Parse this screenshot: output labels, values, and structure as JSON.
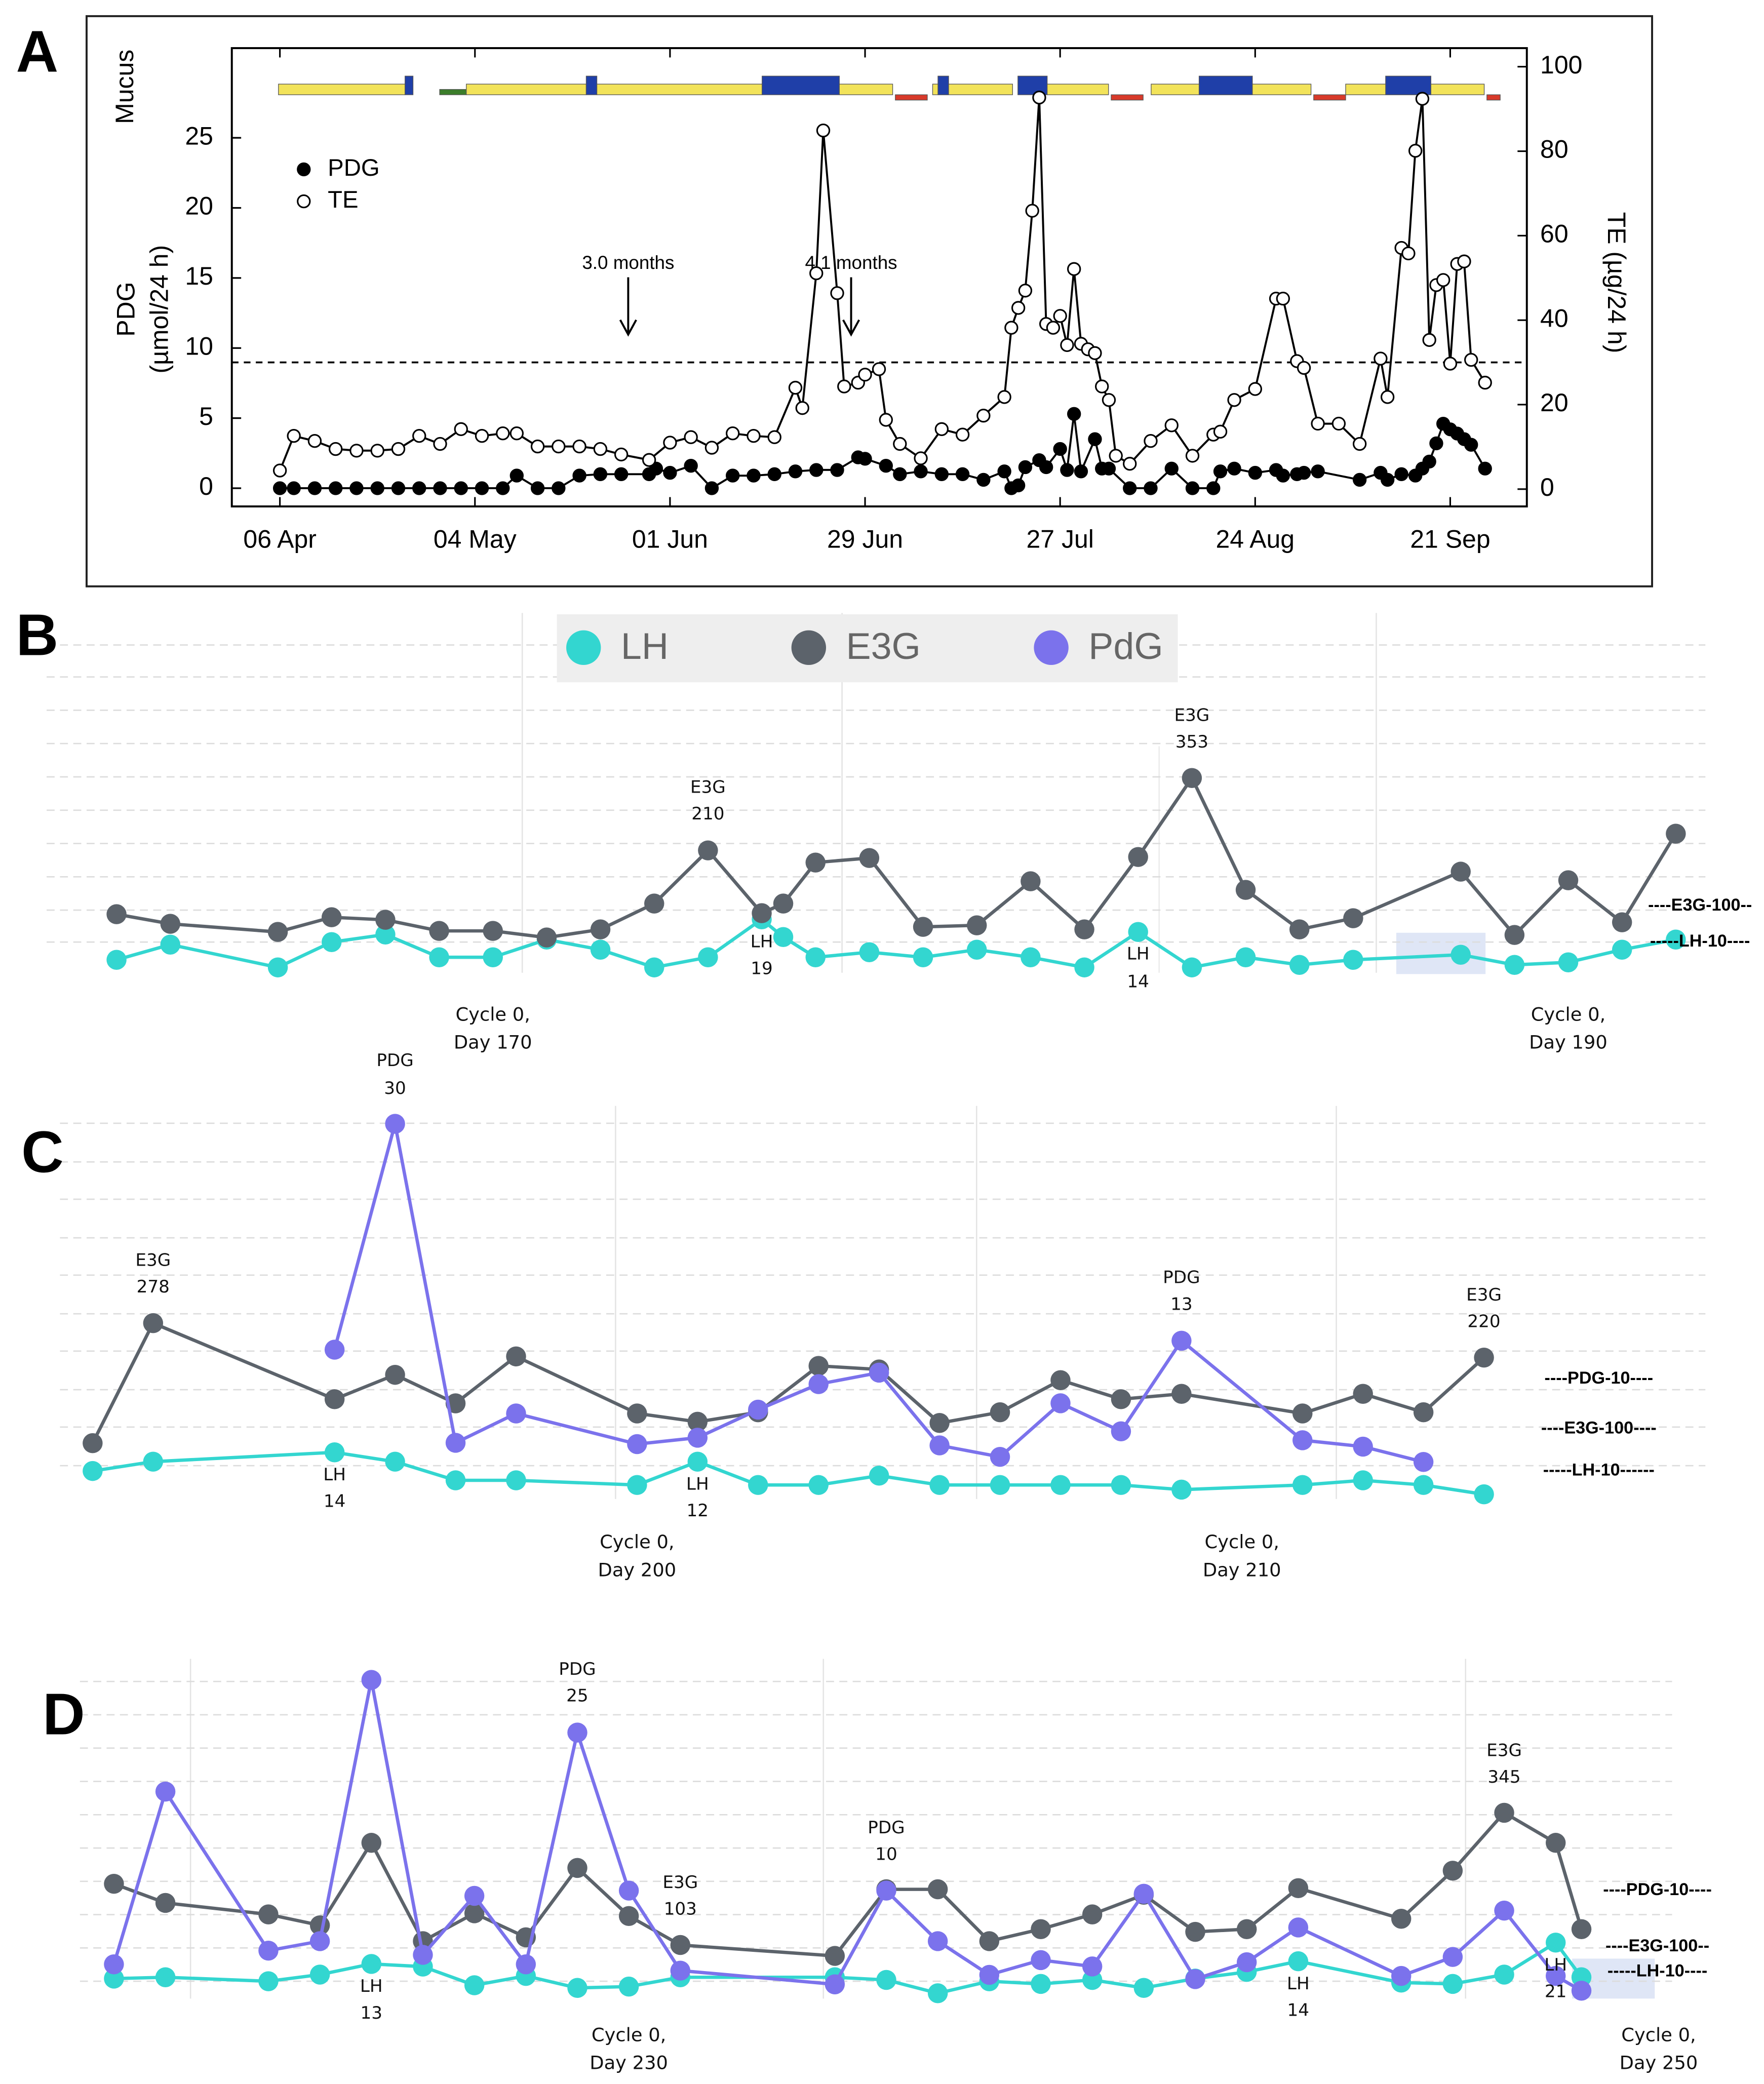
{
  "chart_data": [
    {
      "type": "line",
      "label": "A",
      "ylabel": [
        "PDG",
        "(µmol/24 h)"
      ],
      "y2label": "TE (µg/24 h)",
      "mucus_label": "Mucus",
      "xlim": [
        89.1,
        275
      ],
      "xticks": [
        {
          "value": 96,
          "label": "06 Apr"
        },
        {
          "value": 124,
          "label": "04 May"
        },
        {
          "value": 152,
          "label": "01 Jun"
        },
        {
          "value": 180,
          "label": "29 Jun"
        },
        {
          "value": 208,
          "label": "27 Jul"
        },
        {
          "value": 236,
          "label": "24 Aug"
        },
        {
          "value": 264,
          "label": "21 Sep"
        }
      ],
      "ylim": [
        -1.3,
        31.4
      ],
      "yticks": [
        0,
        5,
        10,
        15,
        20,
        25
      ],
      "y2lim": [
        -4.1,
        104.4
      ],
      "y2ticks": [
        0,
        20,
        40,
        60,
        80,
        100
      ],
      "legend": "upper left",
      "hlines": [
        {
          "value": 30,
          "axis": "y2"
        }
      ],
      "annotations": [
        {
          "text": "3.0 months",
          "x": 146
        },
        {
          "text": "4.1 months",
          "x": 178
        }
      ],
      "series": [
        {
          "name": "PDG",
          "color": "#000000",
          "marker": "filled",
          "x": [
            96,
            98,
            101,
            104,
            107,
            110,
            113,
            116,
            119,
            122,
            125,
            128,
            130,
            133,
            136,
            139,
            142,
            145,
            149,
            150,
            152,
            155,
            158,
            161,
            164,
            167,
            170,
            173,
            176,
            179,
            180,
            183,
            185,
            188,
            191,
            194,
            197,
            200,
            201,
            202,
            203,
            205,
            206,
            208,
            209,
            210,
            211,
            213,
            214,
            215,
            218,
            221,
            224,
            227,
            230,
            231,
            233,
            236,
            239,
            240,
            242,
            243,
            245,
            251,
            254,
            255,
            257,
            259,
            260,
            261,
            262,
            263,
            264,
            265,
            266,
            267,
            269
          ],
          "values": [
            0,
            0,
            0,
            0,
            0,
            0,
            0,
            0,
            0,
            0,
            0,
            0,
            0.9,
            0,
            0,
            0.9,
            1.0,
            1.0,
            1.0,
            1.4,
            1.1,
            1.6,
            0,
            0.9,
            0.9,
            1.0,
            1.2,
            1.3,
            1.3,
            2.2,
            2.1,
            1.6,
            1.0,
            1.2,
            1.0,
            1.0,
            0.6,
            1.2,
            0,
            0.2,
            1.5,
            2.0,
            1.5,
            2.8,
            1.3,
            5.3,
            1.2,
            3.5,
            1.4,
            1.4,
            0,
            0,
            1.4,
            0,
            0,
            1.2,
            1.4,
            1.1,
            1.3,
            0.9,
            1.0,
            1.1,
            1.2,
            0.6,
            1.1,
            0.6,
            1.0,
            0.9,
            1.4,
            1.9,
            3.2,
            4.6,
            4.2,
            3.9,
            3.5,
            3.1,
            1.4
          ]
        },
        {
          "name": "TE",
          "color": "#000000",
          "marker": "open",
          "axis": "y2",
          "x": [
            96,
            98,
            101,
            104,
            107,
            110,
            113,
            116,
            119,
            122,
            125,
            128,
            130,
            133,
            136,
            139,
            142,
            145,
            149,
            152,
            155,
            158,
            161,
            164,
            167,
            170,
            171,
            173,
            174,
            176,
            177,
            179,
            180,
            182,
            183,
            185,
            188,
            191,
            194,
            197,
            200,
            201,
            202,
            203,
            204,
            205,
            206,
            207,
            208,
            209,
            210,
            211,
            212,
            213,
            214,
            215,
            216,
            218,
            221,
            224,
            227,
            230,
            231,
            233,
            236,
            239,
            240,
            242,
            243,
            245,
            248,
            251,
            254,
            255,
            257,
            258,
            259,
            260,
            261,
            262,
            263,
            264,
            265,
            266,
            267,
            269
          ],
          "values": [
            4.4,
            12.6,
            11.4,
            9.5,
            9.1,
            9.1,
            9.5,
            12.6,
            10.7,
            14.2,
            12.6,
            13.2,
            13.2,
            10.1,
            10.1,
            10.1,
            9.5,
            8.2,
            6.9,
            11.0,
            12.3,
            9.8,
            13.2,
            12.6,
            12.3,
            24,
            19.2,
            51.1,
            84.9,
            46.4,
            24.3,
            25.2,
            27.1,
            28.4,
            16.4,
            10.7,
            7.3,
            14.2,
            12.9,
            17.4,
            21.8,
            38.2,
            42.9,
            47.0,
            65.9,
            92.7,
            39.1,
            38.2,
            41.0,
            34.1,
            52.1,
            34.4,
            33.1,
            32.2,
            24.3,
            21.1,
            7.9,
            6.0,
            11.4,
            15.1,
            7.9,
            12.9,
            13.6,
            21.1,
            23.7,
            45.1,
            45.1,
            30.3,
            28.7,
            15.5,
            15.5,
            10.7,
            30.9,
            21.8,
            57.1,
            55.8,
            80.1,
            92.4,
            35.3,
            48.3,
            49.5,
            29.7,
            53.3,
            53.9,
            30.6,
            25.2
          ]
        }
      ]
    },
    {
      "type": "line",
      "label": "B",
      "legend": "top",
      "xlim": [
        161.7,
        192.55
      ],
      "xticks": [
        {
          "value": 170,
          "label": "Cycle 0, Day 170"
        },
        {
          "value": 190,
          "label": "Cycle 0, Day 190"
        }
      ],
      "x": [
        163,
        164,
        166,
        167,
        168,
        169,
        170,
        171,
        172,
        173,
        174,
        175,
        175.4,
        176,
        177,
        178,
        179,
        180,
        181,
        182,
        183,
        184,
        185,
        186,
        188,
        189,
        190,
        191,
        192
      ],
      "ref_lines": [
        {
          "label": "----E3G-100--",
          "value": 100,
          "series": "E3G"
        },
        {
          "label": "-----LH-10----",
          "value": 10,
          "series": "LH"
        }
      ],
      "series": [
        {
          "name": "LH",
          "color": "#33d6d0",
          "ylim": [
            -2.1,
            140
          ],
          "values": [
            3,
            9,
            0,
            10,
            13,
            4,
            4,
            11,
            7,
            0,
            4,
            19,
            12,
            4,
            6,
            4,
            7,
            4,
            0,
            14,
            0,
            4,
            1,
            3,
            5,
            1,
            2,
            7,
            11
          ],
          "value_labels": [
            null,
            null,
            null,
            null,
            null,
            null,
            null,
            null,
            null,
            null,
            null,
            "LH 19",
            null,
            null,
            null,
            null,
            null,
            null,
            null,
            "LH 14",
            null,
            null,
            null,
            null,
            null,
            null,
            null,
            null,
            null
          ]
        },
        {
          "name": "E3G",
          "color": "#5c636b",
          "ylim": [
            -31.6,
            678.9
          ],
          "values": [
            84,
            65,
            49,
            78,
            73,
            51,
            51,
            38,
            54,
            105,
            210,
            86,
            105,
            186,
            195,
            59,
            62,
            149,
            54,
            197,
            353,
            132,
            54,
            76,
            168,
            43,
            151,
            68,
            243
          ],
          "value_labels": [
            null,
            null,
            null,
            null,
            null,
            null,
            null,
            null,
            null,
            null,
            "E3G 210",
            null,
            null,
            null,
            null,
            null,
            null,
            null,
            null,
            null,
            "E3G 353",
            null,
            null,
            null,
            null,
            null,
            null,
            null,
            null
          ]
        },
        {
          "name": "PdG",
          "color": "#7b72ec",
          "values": [
            null,
            null,
            null,
            null,
            null,
            null,
            null,
            null,
            null,
            null,
            null,
            null,
            null,
            null,
            null,
            null,
            null,
            null,
            null,
            null,
            null,
            null,
            null,
            null,
            null,
            null,
            null,
            null,
            null
          ]
        }
      ]
    },
    {
      "type": "line",
      "label": "C",
      "xlim": [
        190.46,
        217.66
      ],
      "xticks": [
        {
          "value": 200,
          "label": "Cycle 0, Day 200"
        },
        {
          "value": 210,
          "label": "Cycle 0, Day 210"
        }
      ],
      "x": [
        191,
        192,
        195,
        196,
        197,
        198,
        200,
        201,
        202,
        203,
        204,
        205,
        206,
        207,
        208,
        209,
        211,
        212,
        213,
        214
      ],
      "ref_lines": [
        {
          "label": "----PDG-10----",
          "value": 10,
          "series": "PdG"
        },
        {
          "label": "----E3G-100----",
          "value": 100,
          "series": "E3G"
        },
        {
          "label": "-----LH-10------",
          "value": 10,
          "series": "LH"
        }
      ],
      "series": [
        {
          "name": "LH",
          "color": "#33d6d0",
          "ylim": [
            4,
            88.3
          ],
          "values": [
            10,
            12,
            14,
            12,
            8,
            8,
            7,
            12,
            7,
            7,
            9,
            7,
            7,
            7,
            7,
            6,
            7,
            8,
            7,
            5
          ],
          "value_labels": [
            null,
            null,
            "LH 14",
            null,
            null,
            null,
            null,
            "LH 12",
            null,
            null,
            null,
            null,
            null,
            null,
            null,
            null,
            null,
            null,
            null,
            null
          ]
        },
        {
          "name": "E3G",
          "color": "#5c636b",
          "ylim": [
            -17.9,
            643.5
          ],
          "values": [
            76,
            278,
            150,
            191,
            143,
            222,
            126,
            112,
            128,
            206,
            200,
            110,
            128,
            182,
            150,
            159,
            126,
            159,
            128,
            220
          ],
          "value_labels": [
            null,
            "E3G 278",
            null,
            null,
            null,
            null,
            null,
            null,
            null,
            null,
            null,
            null,
            null,
            null,
            null,
            null,
            null,
            null,
            null,
            "E3G 220"
          ]
        },
        {
          "name": "PdG",
          "color": "#7b72ec",
          "ylim": [
            0.6,
            31.4
          ],
          "values": [
            null,
            null,
            12.3,
            30,
            5,
            7.3,
            4.9,
            5.4,
            7.6,
            9.6,
            10.5,
            4.8,
            3.9,
            8.1,
            5.9,
            13,
            5.2,
            4.7,
            3.5,
            null
          ],
          "value_labels": [
            null,
            null,
            null,
            "PDG 30",
            null,
            null,
            null,
            null,
            null,
            null,
            null,
            null,
            null,
            null,
            null,
            "PDG 13",
            null,
            null,
            null,
            null
          ]
        }
      ]
    },
    {
      "type": "line",
      "label": "D",
      "xlim": [
        219.34,
        250.26
      ],
      "xticks": [
        {
          "value": 230,
          "label": "Cycle 0, Day 230"
        },
        {
          "value": 250,
          "label": "Cycle 0, Day 250"
        }
      ],
      "x": [
        220,
        221,
        223,
        224,
        225,
        226,
        227,
        228,
        229,
        230,
        231,
        234,
        235,
        236,
        237,
        238,
        239,
        240,
        241,
        242,
        243,
        245,
        246,
        247,
        248,
        248.5
      ],
      "ref_lines": [
        {
          "label": "----PDG-10----",
          "value": 10,
          "series": "PdG"
        },
        {
          "label": "----E3G-100--",
          "value": 100,
          "series": "E3G"
        },
        {
          "label": "-----LH-10----",
          "value": 10,
          "series": "LH"
        }
      ],
      "series": [
        {
          "name": "LH",
          "color": "#33d6d0",
          "ylim": [
            0,
            127.5
          ],
          "values": [
            7.5,
            8,
            6.5,
            9,
            13,
            12,
            5,
            8.5,
            4,
            4.5,
            8,
            8,
            7,
            2,
            6.5,
            5.5,
            7,
            4,
            7.5,
            10,
            14,
            6,
            5.5,
            9,
            21,
            8
          ],
          "value_labels": [
            null,
            null,
            null,
            null,
            "LH 13",
            null,
            null,
            null,
            null,
            null,
            null,
            null,
            null,
            null,
            null,
            null,
            null,
            null,
            null,
            null,
            "LH 14",
            null,
            null,
            null,
            "LH 21",
            null
          ]
        },
        {
          "name": "E3G",
          "color": "#5c636b",
          "ylim": [
            4.9,
            626.8
          ],
          "values": [
            215,
            180,
            159,
            139,
            290,
            110,
            161,
            117,
            244,
            156,
            103,
            83,
            205,
            205,
            110,
            132,
            159,
            195,
            127,
            132,
            207,
            151,
            239,
            345,
            290,
            132
          ],
          "value_labels": [
            null,
            null,
            null,
            null,
            null,
            null,
            null,
            null,
            null,
            null,
            "E3G 103",
            null,
            null,
            null,
            null,
            null,
            null,
            null,
            null,
            null,
            null,
            null,
            null,
            "E3G 345",
            null,
            null
          ]
        },
        {
          "name": "PdG",
          "color": "#7b72ec",
          "ylim": [
            -0.25,
            32
          ],
          "values": [
            3,
            19.4,
            4.3,
            5.2,
            30,
            3.9,
            9.5,
            3,
            25,
            10,
            2.4,
            1.1,
            10,
            5.2,
            2,
            3.4,
            2.8,
            9.7,
            1.6,
            3.2,
            6.5,
            1.9,
            3.7,
            8.1,
            1.9,
            0.5
          ],
          "value_labels": [
            null,
            null,
            null,
            null,
            null,
            null,
            null,
            null,
            "PDG 25",
            null,
            null,
            null,
            "PDG 10",
            null,
            null,
            null,
            null,
            null,
            null,
            null,
            null,
            null,
            null,
            null,
            null,
            null
          ]
        }
      ]
    }
  ]
}
